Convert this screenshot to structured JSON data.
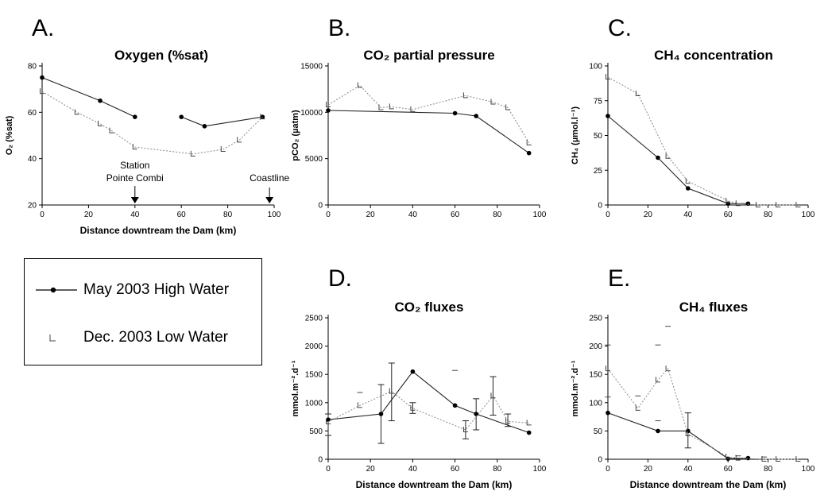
{
  "figure": {
    "legend": {
      "items": [
        {
          "series": "may",
          "label": "May 2003 High Water"
        },
        {
          "series": "dec",
          "label": "Dec. 2003 Low Water"
        }
      ]
    }
  },
  "chart_data": [
    {
      "id": "A",
      "type": "line",
      "letter": "A.",
      "title": "Oxygen (%sat)",
      "xlabel": "Distance downtream the Dam (km)",
      "ylabel": "O₂ (%sat)",
      "xlim": [
        0,
        100
      ],
      "ylim": [
        20,
        80
      ],
      "xticks": [
        0,
        20,
        40,
        60,
        80,
        100
      ],
      "yticks": [
        20,
        40,
        60,
        80
      ],
      "annotations": [
        {
          "text": [
            "Station",
            "Pointe Combi"
          ],
          "x": 40
        },
        {
          "text": [
            "Coastline"
          ],
          "x": 98
        }
      ],
      "series": [
        {
          "name": "May 2003 High Water",
          "key": "may",
          "segments": [
            [
              [
                0,
                75
              ],
              [
                25,
                65
              ],
              [
                40,
                58
              ]
            ],
            [
              [
                60,
                58
              ],
              [
                70,
                54
              ],
              [
                95,
                58
              ]
            ]
          ]
        },
        {
          "name": "Dec. 2003 Low Water",
          "key": "dec",
          "segments": [
            [
              [
                0,
                69
              ],
              [
                15,
                60
              ],
              [
                25,
                55
              ],
              [
                30,
                52
              ],
              [
                40,
                45
              ],
              [
                65,
                42
              ],
              [
                78,
                44
              ],
              [
                85,
                48
              ],
              [
                95,
                58
              ]
            ]
          ]
        }
      ]
    },
    {
      "id": "B",
      "type": "line",
      "letter": "B.",
      "title": "CO₂ partial pressure",
      "xlabel": "",
      "ylabel": "pCO₂ (µatm)",
      "xlim": [
        0,
        100
      ],
      "ylim": [
        0,
        15000
      ],
      "xticks": [
        0,
        20,
        40,
        60,
        80,
        100
      ],
      "yticks": [
        0,
        5000,
        10000,
        15000
      ],
      "series": [
        {
          "name": "May 2003 High Water",
          "key": "may",
          "segments": [
            [
              [
                0,
                10200
              ],
              [
                60,
                9900
              ],
              [
                70,
                9600
              ],
              [
                95,
                5600
              ]
            ]
          ]
        },
        {
          "name": "Dec. 2003 Low Water",
          "key": "dec",
          "segments": [
            [
              [
                0,
                10800
              ],
              [
                15,
                12900
              ],
              [
                25,
                10500
              ],
              [
                30,
                10600
              ],
              [
                40,
                10300
              ],
              [
                65,
                11800
              ],
              [
                78,
                11100
              ],
              [
                85,
                10500
              ],
              [
                95,
                6700
              ]
            ]
          ]
        }
      ]
    },
    {
      "id": "C",
      "type": "line",
      "letter": "C.",
      "title": "CH₄ concentration",
      "xlabel": "",
      "ylabel": "CH₄ (µmol.l⁻¹)",
      "xlim": [
        0,
        100
      ],
      "ylim": [
        0,
        100
      ],
      "xticks": [
        0,
        20,
        40,
        60,
        80,
        100
      ],
      "yticks": [
        0,
        25,
        50,
        75,
        100
      ],
      "series": [
        {
          "name": "May 2003 High Water",
          "key": "may",
          "segments": [
            [
              [
                0,
                64
              ],
              [
                25,
                34
              ],
              [
                40,
                12
              ],
              [
                60,
                1
              ],
              [
                70,
                1
              ]
            ]
          ]
        },
        {
          "name": "Dec. 2003 Low Water",
          "key": "dec",
          "segments": [
            [
              [
                0,
                92
              ],
              [
                15,
                80
              ],
              [
                30,
                35
              ],
              [
                40,
                17
              ],
              [
                60,
                3
              ],
              [
                65,
                1
              ],
              [
                75,
                0
              ],
              [
                85,
                0
              ],
              [
                95,
                0
              ]
            ]
          ]
        }
      ]
    },
    {
      "id": "D",
      "type": "line",
      "letter": "D.",
      "title": "CO₂ fluxes",
      "xlabel": "Distance downtream the Dam (km)",
      "ylabel": "mmol.m⁻².d⁻¹",
      "xlim": [
        0,
        100
      ],
      "ylim": [
        0,
        2500
      ],
      "xticks": [
        0,
        20,
        40,
        60,
        80,
        100
      ],
      "yticks": [
        0,
        500,
        1000,
        1500,
        2000,
        2500
      ],
      "series": [
        {
          "name": "May 2003 High Water",
          "key": "may",
          "segments": [
            [
              [
                0,
                700
              ],
              [
                25,
                800
              ],
              [
                40,
                1550
              ],
              [
                60,
                950
              ],
              [
                70,
                800
              ],
              [
                95,
                470
              ]
            ]
          ],
          "errors": [
            [
              0,
              420,
              800
            ],
            [
              25,
              280,
              1320
            ],
            [
              70,
              520,
              1070
            ]
          ]
        },
        {
          "name": "Dec. 2003 Low Water",
          "key": "dec",
          "segments": [
            [
              [
                0,
                660
              ],
              [
                15,
                950
              ],
              [
                30,
                1200
              ],
              [
                40,
                900
              ],
              [
                65,
                520
              ],
              [
                78,
                1120
              ],
              [
                85,
                670
              ],
              [
                95,
                640
              ]
            ]
          ],
          "errors": [
            [
              30,
              680,
              1700
            ],
            [
              40,
              810,
              1000
            ],
            [
              65,
              360,
              680
            ],
            [
              78,
              780,
              1460
            ],
            [
              85,
              580,
              800
            ]
          ],
          "markers": [
            [
              15,
              1180
            ],
            [
              60,
              1570
            ]
          ]
        }
      ]
    },
    {
      "id": "E",
      "type": "line",
      "letter": "E.",
      "title": "CH₄ fluxes",
      "xlabel": "Distance downtream the Dam (km)",
      "ylabel": "mmol.m⁻².d⁻¹",
      "xlim": [
        0,
        100
      ],
      "ylim": [
        0,
        250
      ],
      "xticks": [
        0,
        20,
        40,
        60,
        80,
        100
      ],
      "yticks": [
        0,
        50,
        100,
        150,
        200,
        250
      ],
      "series": [
        {
          "name": "May 2003 High Water",
          "key": "may",
          "segments": [
            [
              [
                0,
                82
              ],
              [
                25,
                50
              ],
              [
                40,
                50
              ],
              [
                60,
                1
              ],
              [
                70,
                2
              ]
            ]
          ],
          "errors": [
            [
              40,
              20,
              82
            ]
          ]
        },
        {
          "name": "Dec. 2003 Low Water",
          "key": "dec",
          "segments": [
            [
              [
                0,
                160
              ],
              [
                15,
                90
              ],
              [
                25,
                140
              ],
              [
                30,
                160
              ],
              [
                40,
                45
              ],
              [
                60,
                4
              ],
              [
                65,
                2
              ],
              [
                78,
                0
              ],
              [
                85,
                0
              ],
              [
                95,
                0
              ]
            ]
          ],
          "markers": [
            [
              0,
              202
            ],
            [
              0,
              110
            ],
            [
              15,
              112
            ],
            [
              25,
              202
            ],
            [
              25,
              68
            ],
            [
              30,
              235
            ],
            [
              65,
              6
            ],
            [
              78,
              4
            ]
          ]
        }
      ]
    }
  ]
}
